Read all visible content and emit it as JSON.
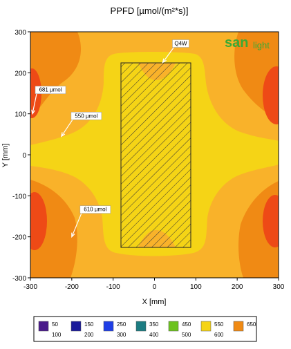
{
  "chart_data": {
    "type": "heatmap",
    "title": "PPFD [µmol/(m²*s)]",
    "xlabel": "X [mm]",
    "ylabel": "Y [mm]",
    "xlim": [
      -300,
      300
    ],
    "ylim": [
      -300,
      300
    ],
    "x_ticks": [
      "-300",
      "-200",
      "-100",
      "0",
      "100",
      "200",
      "300"
    ],
    "y_ticks": [
      "300",
      "200",
      "100",
      "0",
      "-100",
      "-200",
      "-300"
    ],
    "fixture": {
      "label": "Q4W",
      "x_range": [
        -85,
        85
      ],
      "y_range": [
        -228,
        225
      ],
      "pattern": "hatched"
    },
    "annotations": [
      {
        "text": "681 µmol",
        "x": -295,
        "y": 100
      },
      {
        "text": "550 µmol",
        "x": -225,
        "y": 45
      },
      {
        "text": "610 µmol",
        "x": -200,
        "y": -200
      },
      {
        "text": "Q4W",
        "x": 20,
        "y": 225
      }
    ],
    "legend": {
      "placement": "bottom",
      "entries": [
        {
          "top": "50",
          "bottom": "100",
          "color": "#4a1a8a"
        },
        {
          "top": "150",
          "bottom": "200",
          "color": "#1a1a9a"
        },
        {
          "top": "250",
          "bottom": "300",
          "color": "#1f3ee6"
        },
        {
          "top": "350",
          "bottom": "400",
          "color": "#1c7c82"
        },
        {
          "top": "450",
          "bottom": "500",
          "color": "#6cc21f"
        },
        {
          "top": "550",
          "bottom": "600",
          "color": "#f5d416"
        },
        {
          "top": "650",
          "bottom": "",
          "color": "#f08a14"
        }
      ]
    },
    "contour_colors": {
      "band_550": "#f5d416",
      "band_600": "#f9b22a",
      "band_650": "#f08a14",
      "band_high": "#ee4a16"
    },
    "grid": false
  },
  "logo": {
    "part1": "san",
    "part2": "light",
    "color1": "#3aaa35",
    "color2": "#3aaa35"
  }
}
